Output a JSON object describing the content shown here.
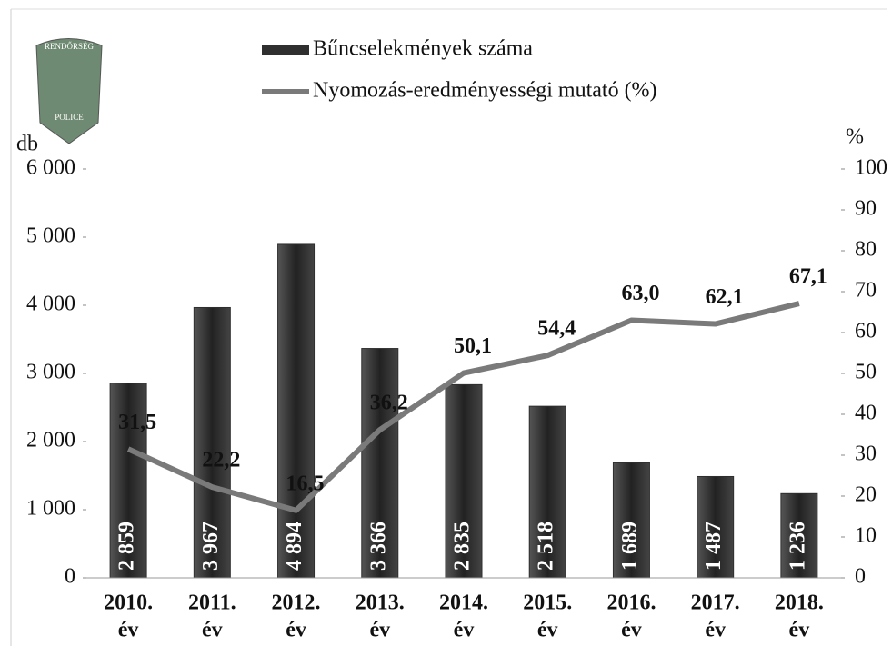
{
  "logo": {
    "top": "RENDŐRSÉG",
    "bottom": "POLICE"
  },
  "chart_data": {
    "type": "bar_line",
    "categories": [
      [
        "2010.",
        "év"
      ],
      [
        "2011.",
        "év"
      ],
      [
        "2012.",
        "év"
      ],
      [
        "2013.",
        "év"
      ],
      [
        "2014.",
        "év"
      ],
      [
        "2015.",
        "év"
      ],
      [
        "2016.",
        "év"
      ],
      [
        "2017.",
        "év"
      ],
      [
        "2018.",
        "év"
      ]
    ],
    "y_label": "db",
    "y2_label": "%",
    "ylim": [
      0,
      6000
    ],
    "yticks": [
      0,
      {
        "value": 1000,
        "label": "1 000"
      },
      {
        "value": 2000,
        "label": "2 000"
      },
      {
        "value": 3000,
        "label": "3 000"
      },
      {
        "value": 4000,
        "label": "4 000"
      },
      {
        "value": 5000,
        "label": "5 000"
      },
      {
        "value": 6000,
        "label": "6 000"
      }
    ],
    "y2lim": [
      0,
      100
    ],
    "y2ticks": [
      0,
      10,
      20,
      30,
      40,
      50,
      60,
      70,
      80,
      90,
      100
    ],
    "series": [
      {
        "name": "Bűncselekmények száma",
        "color": "#2f2f2f",
        "kind": "bar",
        "values": [
          2859,
          3967,
          4894,
          3366,
          2835,
          2518,
          1689,
          1487,
          1236
        ],
        "value_labels": [
          "2 859",
          "3 967",
          "4 894",
          "3 366",
          "2 835",
          "2 518",
          "1 689",
          "1 487",
          "1 236"
        ]
      },
      {
        "name": "Nyomozás-eredményességi mutató (%)",
        "color": "#7a7a7a",
        "kind": "line",
        "axis": "y2",
        "values": [
          31.5,
          22.2,
          16.5,
          36.2,
          50.1,
          54.4,
          63.0,
          62.1,
          67.1
        ],
        "value_labels": [
          "31,5",
          "22,2",
          "16,5",
          "36,2",
          "50,1",
          "54,4",
          "63,0",
          "62,1",
          "67,1"
        ]
      }
    ]
  }
}
